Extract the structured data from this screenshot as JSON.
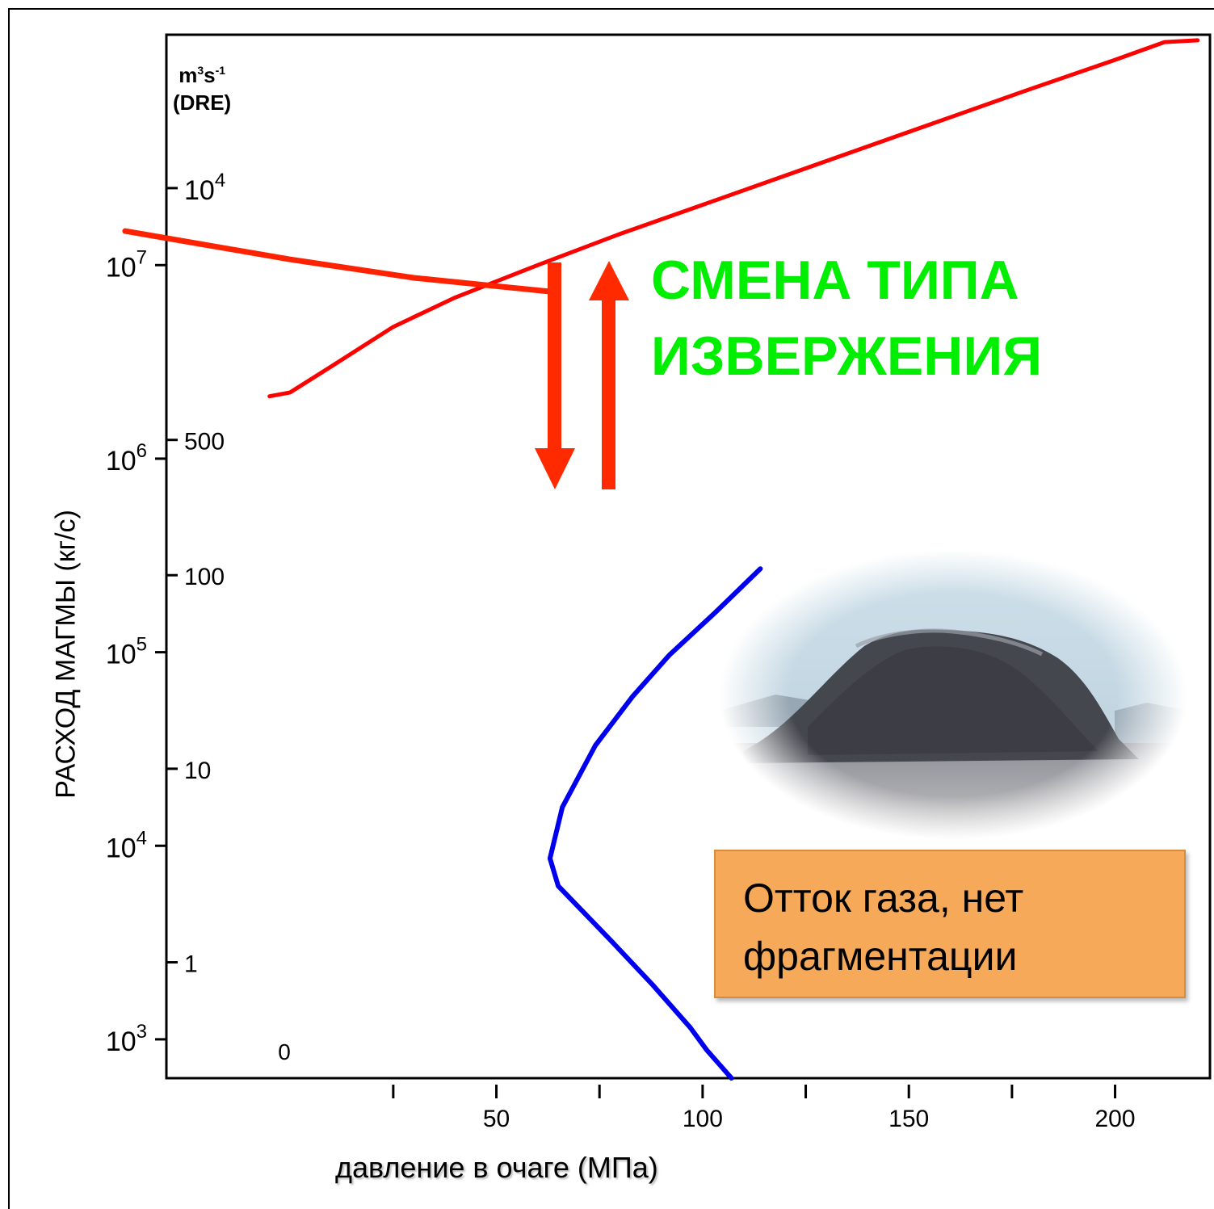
{
  "chart_data": {
    "type": "line",
    "title": "",
    "xlabel": "давление в очаге (МПа)",
    "ylabel": "РАСХОД МАГМЫ (кг/с)",
    "x_ticks": [
      "50",
      "100",
      "150",
      "200"
    ],
    "y_ticks_mass": [
      "10^3",
      "10^4",
      "10^5",
      "10^6",
      "10^7"
    ],
    "y_ticks_volume": [
      "0",
      "1",
      "10",
      "100",
      "500",
      "10^4"
    ],
    "y_volume_unit": "m³s⁻¹ (DRE)",
    "y_scale": "log",
    "series": [
      {
        "color": "#ff0000",
        "points": [
          [
            -5,
            2100000.0
          ],
          [
            0,
            2200000.0
          ],
          [
            10,
            3000000.0
          ],
          [
            25,
            4800000.0
          ],
          [
            40,
            6800000.0
          ],
          [
            60,
            10000000.0
          ],
          [
            80,
            14500000.0
          ],
          [
            100,
            20500000.0
          ],
          [
            120,
            29000000.0
          ],
          [
            140,
            41000000.0
          ],
          [
            160,
            58000000.0
          ],
          [
            180,
            82000000.0
          ],
          [
            200,
            115000000.0
          ],
          [
            212,
            142000000.0
          ],
          [
            220,
            145000000.0
          ]
        ]
      },
      {
        "color": "#ff2200",
        "points": [
          [
            -40,
            15000000.0
          ],
          [
            0,
            10700000.0
          ],
          [
            30,
            8600000.0
          ],
          [
            63,
            7300000.0
          ]
        ]
      },
      {
        "color": "#0000ee",
        "points": [
          [
            107,
            630
          ],
          [
            101,
            880
          ],
          [
            97,
            1150
          ],
          [
            88,
            1900
          ],
          [
            78,
            3200
          ],
          [
            65,
            6200
          ],
          [
            63,
            8600
          ],
          [
            66,
            15800
          ],
          [
            74,
            33000
          ],
          [
            83,
            59000
          ],
          [
            92,
            97000
          ],
          [
            103,
            160000
          ],
          [
            114,
            270000
          ]
        ]
      }
    ],
    "xlim": [
      -30,
      223
    ],
    "ylim": [
      630,
      155000000.0
    ],
    "annotation": [
      "СМЕНА ТИПА",
      "ИЗВЕРЖЕНИЯ"
    ],
    "note": [
      "Отток газа, нет",
      "фрагментации"
    ],
    "arrows": [
      "down",
      "up"
    ],
    "accent_colors": {
      "annotation": "#00ee00",
      "note_bg": "#f7a95a",
      "arrows": "#ff2a00"
    },
    "photo": "lava-dome-photo"
  }
}
